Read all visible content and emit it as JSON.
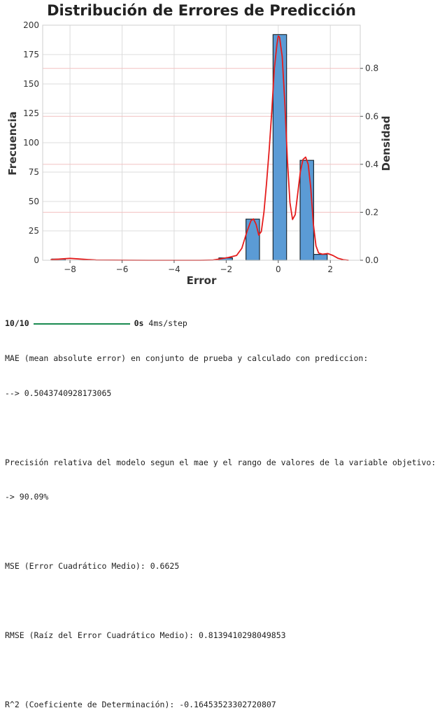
{
  "chart_data": {
    "type": "bar",
    "title": "Distribución de Errores de Predicción",
    "xlabel": "Error",
    "ylabel": "Frecuencia",
    "y2label": "Densidad",
    "xlim": [
      -9.05,
      3.15
    ],
    "ylim": [
      0,
      200
    ],
    "y2lim": [
      0,
      0.98
    ],
    "xticks": [
      -8,
      -6,
      -4,
      -2,
      0,
      2
    ],
    "xtick_labels": [
      "−8",
      "−6",
      "−4",
      "−2",
      "0",
      "2"
    ],
    "yticks": [
      0,
      25,
      50,
      75,
      100,
      125,
      150,
      175,
      200
    ],
    "ytick_labels": [
      "0",
      "25",
      "50",
      "75",
      "100",
      "125",
      "150",
      "175",
      "200"
    ],
    "y2ticks": [
      0.0,
      0.2,
      0.4,
      0.6,
      0.8
    ],
    "y2tick_labels": [
      "0.0",
      "0.2",
      "0.4",
      "0.6",
      "0.8"
    ],
    "grid": true,
    "bins": [
      {
        "x0": -8.7,
        "x1": -8.18,
        "count": 1
      },
      {
        "x0": -2.28,
        "x1": -1.76,
        "count": 2
      },
      {
        "x0": -1.24,
        "x1": -0.72,
        "count": 35
      },
      {
        "x0": -0.2,
        "x1": 0.32,
        "count": 192
      },
      {
        "x0": 0.84,
        "x1": 1.36,
        "count": 85
      },
      {
        "x0": 1.36,
        "x1": 1.88,
        "count": 5
      }
    ],
    "kde_density": {
      "x": [
        -8.75,
        -8.4,
        -8.0,
        -7.6,
        -7.0,
        -5.0,
        -3.0,
        -2.5,
        -2.2,
        -1.9,
        -1.6,
        -1.4,
        -1.2,
        -1.05,
        -0.95,
        -0.85,
        -0.75,
        -0.65,
        -0.55,
        -0.45,
        -0.35,
        -0.25,
        -0.15,
        -0.05,
        0.0,
        0.05,
        0.15,
        0.25,
        0.35,
        0.45,
        0.55,
        0.65,
        0.75,
        0.85,
        0.95,
        1.05,
        1.15,
        1.25,
        1.35,
        1.45,
        1.55,
        1.7,
        1.9,
        2.1,
        2.3,
        2.5,
        2.7
      ],
      "y": [
        0.002,
        0.005,
        0.008,
        0.005,
        0.001,
        0.0,
        0.0,
        0.001,
        0.006,
        0.012,
        0.02,
        0.05,
        0.12,
        0.165,
        0.172,
        0.15,
        0.105,
        0.12,
        0.2,
        0.32,
        0.46,
        0.62,
        0.8,
        0.9,
        0.935,
        0.93,
        0.85,
        0.66,
        0.42,
        0.24,
        0.17,
        0.19,
        0.28,
        0.37,
        0.42,
        0.43,
        0.4,
        0.3,
        0.15,
        0.06,
        0.03,
        0.025,
        0.028,
        0.02,
        0.008,
        0.002,
        0.0
      ]
    },
    "colors": {
      "bar": "#5b9bd5",
      "bar_edge": "#1c2b36",
      "kde": "#e51c1c",
      "grid": "#dcdcdc",
      "grid_right": "#f2c1c1"
    }
  },
  "console": {
    "progress": {
      "step": "10/10",
      "fraction": 1.0,
      "time": "0s",
      "rate": "4ms/step"
    },
    "lines": [
      "MAE (mean absolute error) en conjunto de prueba y calculado con prediccion:",
      "--> 0.5043740928173065",
      "",
      "Precisión relativa del modelo segun el mae y el rango de valores de la variable objetivo:",
      "-> 90.09%",
      "",
      "MSE (Error Cuadrático Medio): 0.6625",
      "",
      "RMSE (Raíz del Error Cuadrático Medio): 0.8139410298049853",
      "",
      "R^2 (Coeficiente de Determinación): -0.16453523302720807"
    ]
  }
}
